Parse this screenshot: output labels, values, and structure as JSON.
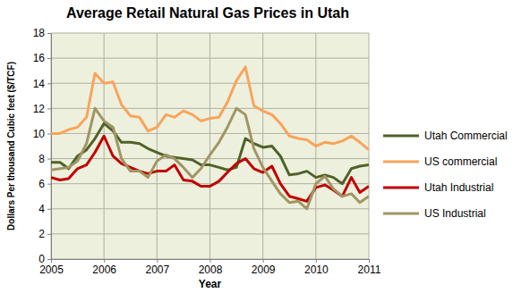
{
  "chart_data": {
    "type": "line",
    "title": "Average Retail Natural Gas Prices in Utah",
    "x_label": "Year",
    "y_label": "Dollars Per thousand  Cubic feet ($/TCF)",
    "x": [
      2005,
      2005.17,
      2005.33,
      2005.5,
      2005.67,
      2005.83,
      2006,
      2006.17,
      2006.33,
      2006.5,
      2006.67,
      2006.83,
      2007,
      2007.17,
      2007.33,
      2007.5,
      2007.67,
      2007.83,
      2008,
      2008.17,
      2008.33,
      2008.5,
      2008.67,
      2008.83,
      2009,
      2009.17,
      2009.33,
      2009.5,
      2009.67,
      2009.83,
      2010,
      2010.17,
      2010.33,
      2010.5,
      2010.67,
      2010.83,
      2011
    ],
    "series": [
      {
        "name": "Utah Commercial",
        "color": "#4f6228",
        "values": [
          7.7,
          7.7,
          7.2,
          8.2,
          8.7,
          9.6,
          10.8,
          10.2,
          9.3,
          9.3,
          9.2,
          8.8,
          8.5,
          8.2,
          8.1,
          8.0,
          7.9,
          7.5,
          7.5,
          7.3,
          7.1,
          7.3,
          9.6,
          9.2,
          8.9,
          9.0,
          8.2,
          6.7,
          6.8,
          7.0,
          6.5,
          6.7,
          6.5,
          6.0,
          7.2,
          7.4,
          7.5
        ]
      },
      {
        "name": "US commercial",
        "color": "#f9a45a",
        "values": [
          10.0,
          10.0,
          10.3,
          10.5,
          11.3,
          14.8,
          14.0,
          14.1,
          12.3,
          11.4,
          11.3,
          10.2,
          10.5,
          11.5,
          11.3,
          11.8,
          11.5,
          11.0,
          11.2,
          11.3,
          12.5,
          14.2,
          15.3,
          12.2,
          11.8,
          11.5,
          10.8,
          9.8,
          9.6,
          9.5,
          9.0,
          9.3,
          9.2,
          9.4,
          9.8,
          9.3,
          8.7
        ]
      },
      {
        "name": "Utah Industrial",
        "color": "#c00000",
        "values": [
          6.5,
          6.3,
          6.4,
          7.2,
          7.5,
          8.5,
          9.8,
          8.2,
          7.6,
          7.3,
          7.0,
          6.8,
          7.0,
          7.0,
          7.5,
          6.3,
          6.2,
          5.8,
          5.8,
          6.2,
          6.9,
          7.6,
          8.0,
          7.2,
          6.9,
          7.4,
          6.0,
          5.0,
          4.8,
          4.6,
          5.7,
          5.9,
          5.5,
          5.0,
          6.5,
          5.3,
          5.8
        ]
      },
      {
        "name": "US Industrial",
        "color": "#a09664",
        "values": [
          7.1,
          7.2,
          7.3,
          7.8,
          9.2,
          12.0,
          11.0,
          10.5,
          8.0,
          7.0,
          7.0,
          6.5,
          7.8,
          8.3,
          8.0,
          7.3,
          6.5,
          7.2,
          8.3,
          9.3,
          10.5,
          12.0,
          11.5,
          8.8,
          7.3,
          6.2,
          5.2,
          4.5,
          4.6,
          4.0,
          6.0,
          6.6,
          5.6,
          5.0,
          5.2,
          4.5,
          5.0
        ]
      }
    ],
    "xlim": [
      2005,
      2011
    ],
    "xticks": [
      2005,
      2006,
      2007,
      2008,
      2009,
      2010,
      2011
    ],
    "ylim": [
      0,
      18
    ],
    "yticks": [
      0,
      2,
      4,
      6,
      8,
      10,
      12,
      14,
      16,
      18
    ],
    "grid": true,
    "legend": "right"
  }
}
